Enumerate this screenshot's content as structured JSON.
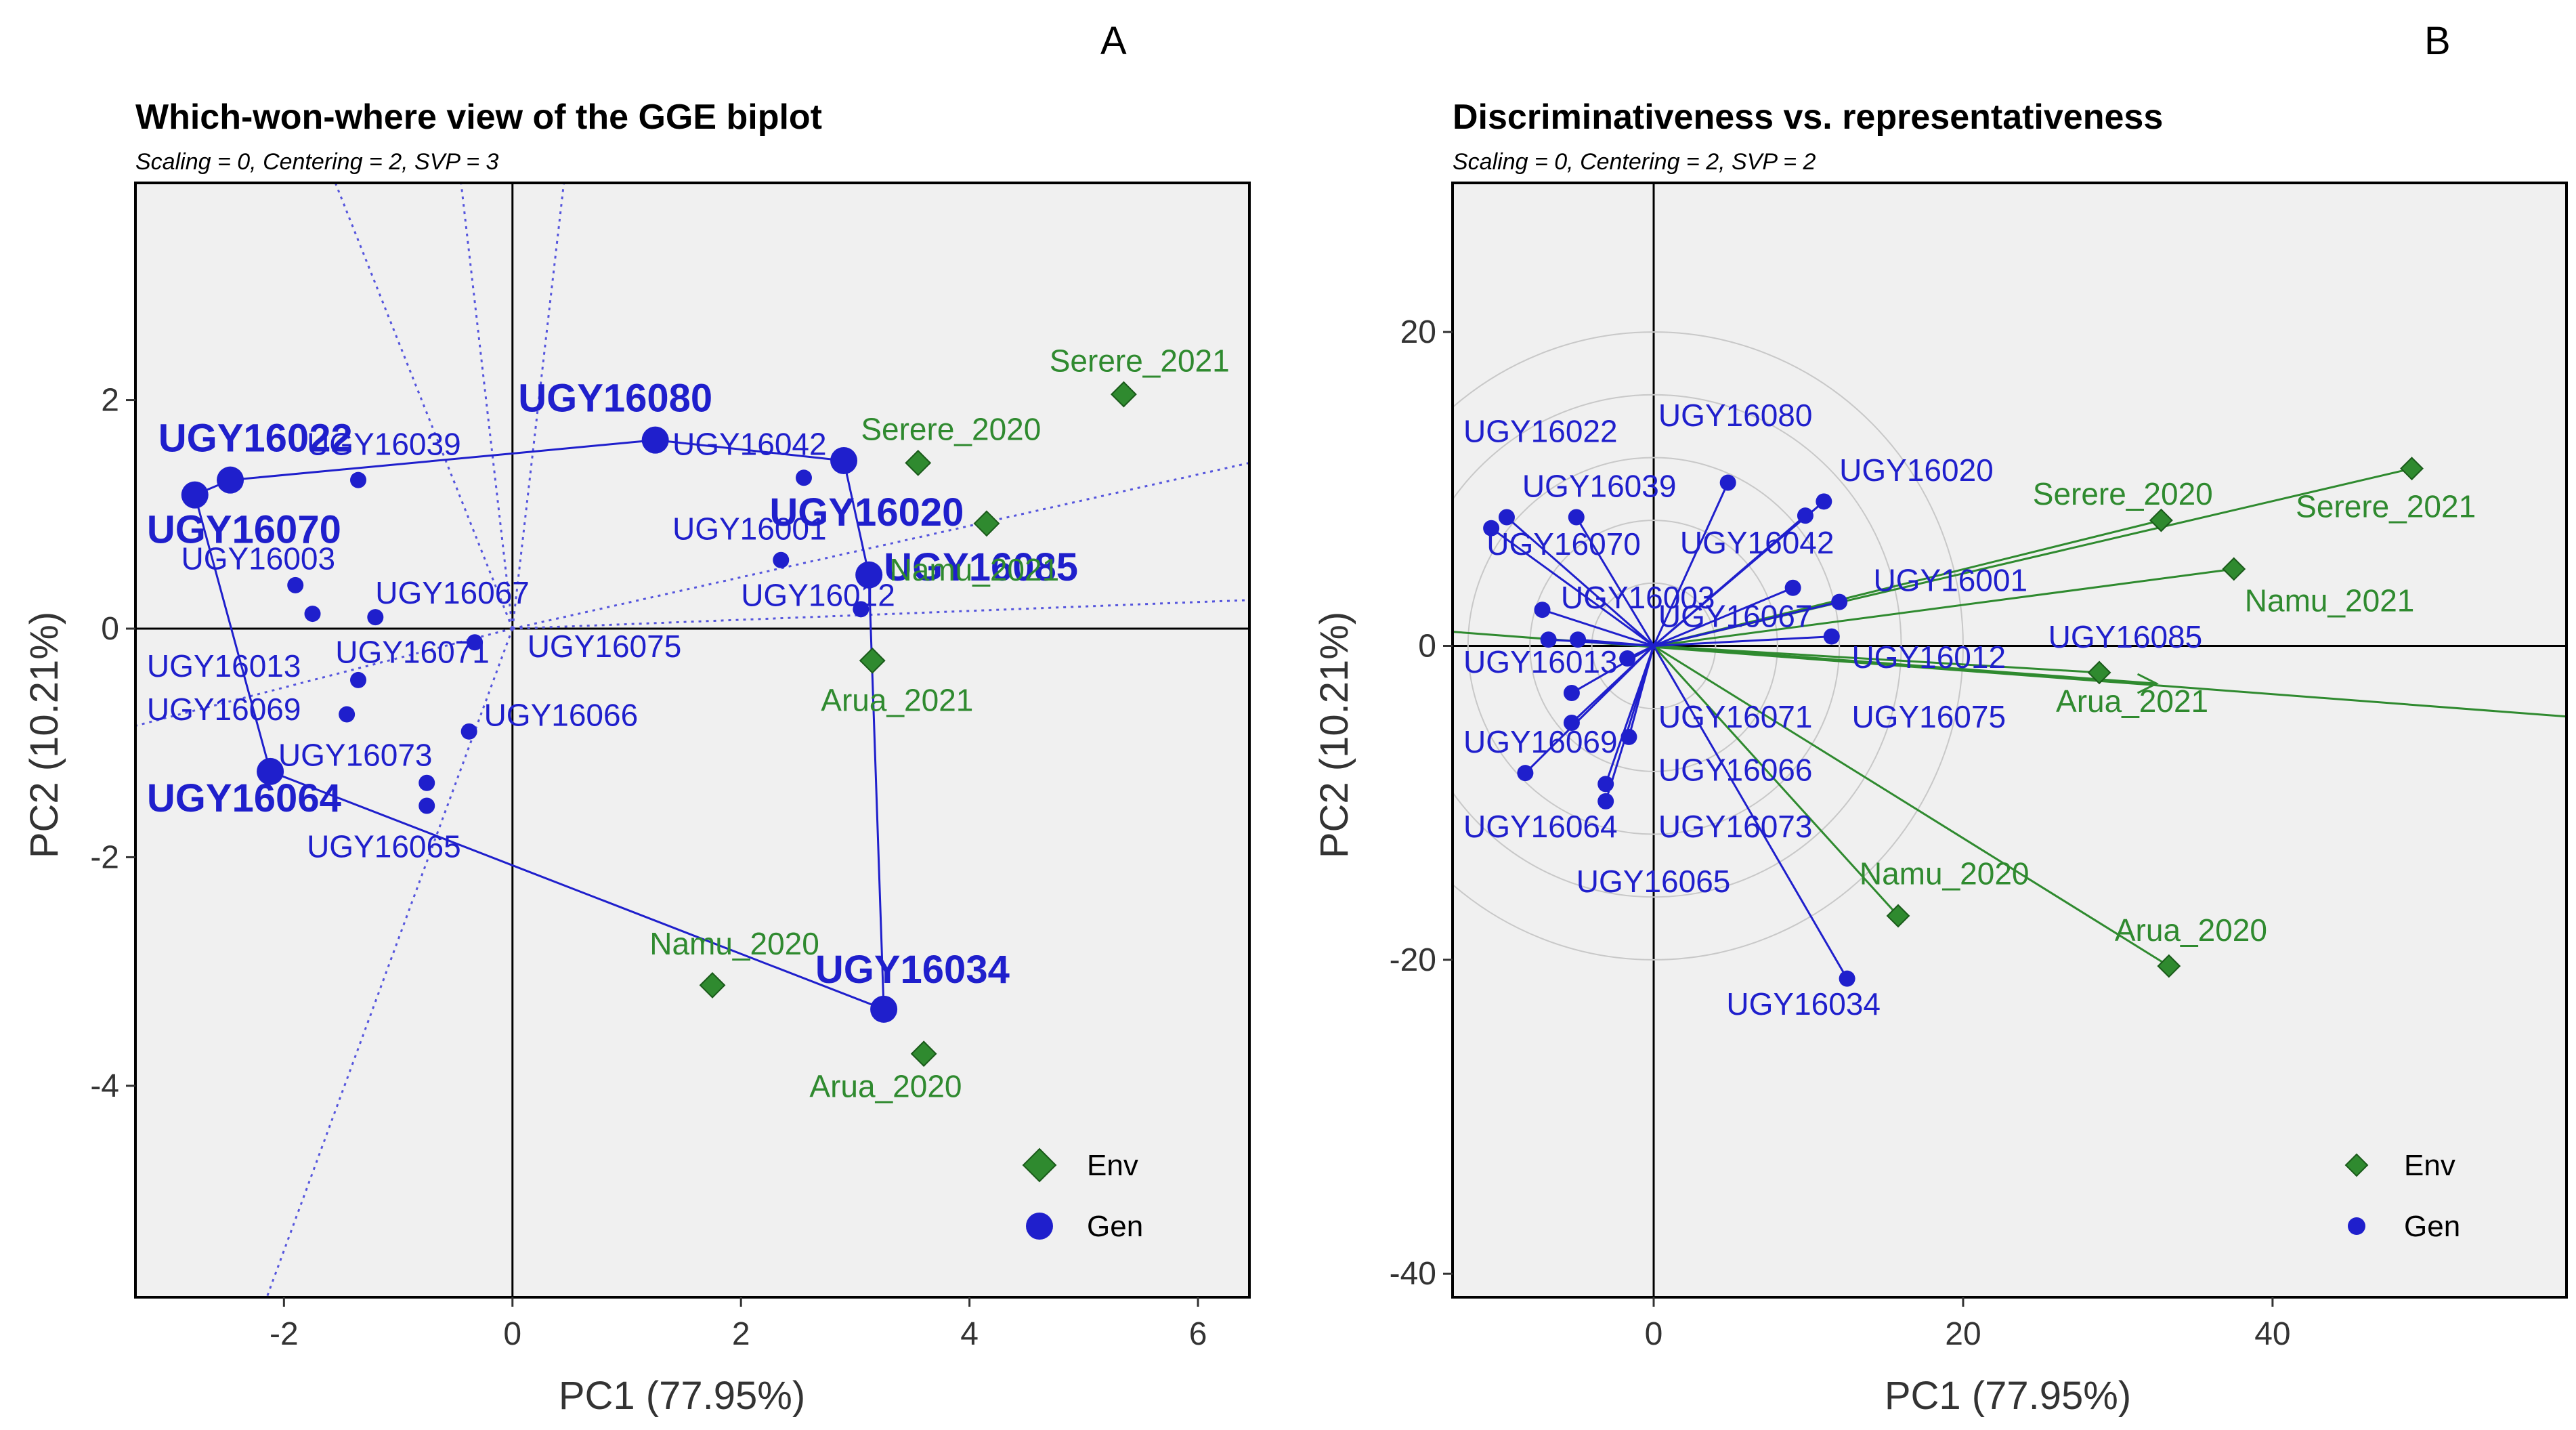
{
  "chart_data": [
    {
      "type": "scatter",
      "panel": "A",
      "title": "Which-won-where view of the GGE biplot",
      "subtitle": "Scaling = 0, Centering = 2, SVP = 3",
      "xlabel": "PC1 (77.95%)",
      "ylabel": "PC2 (10.21%)",
      "xlim": [
        -3.3,
        6.45
      ],
      "ylim": [
        -5.85,
        3.9
      ],
      "xticks": [
        -2,
        0,
        2,
        4,
        6
      ],
      "yticks": [
        -4,
        -2,
        0,
        2
      ],
      "colors": {
        "gen": "#1f1fcc",
        "env": "#2f8a2f",
        "axis": "#000000",
        "panel_bg": "#f0f0f0"
      },
      "genotypes": [
        {
          "name": "UGY16022",
          "x": -2.47,
          "y": 1.3,
          "vertex": true,
          "lx": -3.1,
          "ly": 1.55
        },
        {
          "name": "UGY16070",
          "x": -2.78,
          "y": 1.17,
          "vertex": true,
          "lx": -3.2,
          "ly": 0.75
        },
        {
          "name": "UGY16080",
          "x": 1.25,
          "y": 1.65,
          "vertex": true,
          "lx": 0.05,
          "ly": 1.9
        },
        {
          "name": "UGY16020",
          "x": 2.9,
          "y": 1.47,
          "vertex": true,
          "lx": 2.25,
          "ly": 0.9
        },
        {
          "name": "UGY16085",
          "x": 3.12,
          "y": 0.47,
          "vertex": true,
          "lx": 3.25,
          "ly": 0.42
        },
        {
          "name": "UGY16034",
          "x": 3.25,
          "y": -3.33,
          "vertex": true,
          "lx": 2.65,
          "ly": -3.1
        },
        {
          "name": "UGY16064",
          "x": -2.12,
          "y": -1.25,
          "vertex": true,
          "lx": -3.2,
          "ly": -1.6
        },
        {
          "name": "UGY16039",
          "x": -1.35,
          "y": 1.3,
          "vertex": false,
          "lx": -1.8,
          "ly": 1.52
        },
        {
          "name": "UGY16042",
          "x": 2.55,
          "y": 1.32,
          "vertex": false,
          "lx": 1.4,
          "ly": 1.52
        },
        {
          "name": "UGY16001",
          "x": 2.35,
          "y": 0.6,
          "vertex": false,
          "lx": 1.4,
          "ly": 0.78
        },
        {
          "name": "UGY16012",
          "x": 3.05,
          "y": 0.17,
          "vertex": false,
          "lx": 2.0,
          "ly": 0.2
        },
        {
          "name": "UGY16003",
          "x": -1.9,
          "y": 0.38,
          "vertex": false,
          "lx": -2.9,
          "ly": 0.52
        },
        {
          "name": "UGY16067",
          "x": -1.2,
          "y": 0.1,
          "vertex": false,
          "lx": -1.2,
          "ly": 0.22
        },
        {
          "name": "UGY16013",
          "x": -1.75,
          "y": 0.13,
          "vertex": false,
          "lx": -3.2,
          "ly": -0.42
        },
        {
          "name": "UGY16071",
          "x": -1.35,
          "y": -0.45,
          "vertex": false,
          "lx": -1.55,
          "ly": -0.3
        },
        {
          "name": "UGY16075",
          "x": -0.33,
          "y": -0.12,
          "vertex": false,
          "lx": 0.13,
          "ly": -0.25
        },
        {
          "name": "UGY16069",
          "x": -1.45,
          "y": -0.75,
          "vertex": false,
          "lx": -3.2,
          "ly": -0.8
        },
        {
          "name": "UGY16066",
          "x": -0.38,
          "y": -0.9,
          "vertex": false,
          "lx": -0.25,
          "ly": -0.85
        },
        {
          "name": "UGY16073",
          "x": -0.75,
          "y": -1.35,
          "vertex": false,
          "lx": -2.05,
          "ly": -1.2
        },
        {
          "name": "UGY16065",
          "x": -0.75,
          "y": -1.55,
          "vertex": false,
          "lx": -1.8,
          "ly": -2.0
        }
      ],
      "environments": [
        {
          "name": "Serere_2021",
          "x": 5.35,
          "y": 2.05,
          "lx": 4.7,
          "ly": 2.25
        },
        {
          "name": "Serere_2020",
          "x": 3.55,
          "y": 1.45,
          "lx": 3.05,
          "ly": 1.65
        },
        {
          "name": "Namu_2021",
          "x": 4.15,
          "y": 0.92,
          "lx": 3.3,
          "ly": 0.42
        },
        {
          "name": "Arua_2021",
          "x": 3.15,
          "y": -0.28,
          "lx": 2.7,
          "ly": -0.72
        },
        {
          "name": "Namu_2020",
          "x": 1.75,
          "y": -3.12,
          "lx": 1.2,
          "ly": -2.85
        },
        {
          "name": "Arua_2020",
          "x": 3.6,
          "y": -3.72,
          "lx": 2.6,
          "ly": -4.1
        }
      ],
      "polygon_order": [
        "UGY16080",
        "UGY16020",
        "UGY16085",
        "UGY16034",
        "UGY16064",
        "UGY16070",
        "UGY16022",
        "UGY16080"
      ],
      "sector_rays": [
        [
          -2.15,
          -5.85
        ],
        [
          -3.3,
          -0.85
        ],
        [
          -1.55,
          3.9
        ],
        [
          -0.45,
          3.9
        ],
        [
          0.45,
          3.9
        ],
        [
          6.45,
          1.45
        ],
        [
          6.45,
          0.25
        ]
      ],
      "legend": [
        {
          "label": "Env",
          "kind": "env"
        },
        {
          "label": "Gen",
          "kind": "gen"
        }
      ]
    },
    {
      "type": "scatter",
      "panel": "B",
      "title": "Discriminativeness vs. representativeness",
      "subtitle": "Scaling = 0, Centering = 2, SVP = 2",
      "xlabel": "PC1 (77.95%)",
      "ylabel": "PC2 (10.21%)",
      "xlim": [
        -13.0,
        59.0
      ],
      "ylim": [
        -41.5,
        29.5
      ],
      "xticks": [
        0,
        20,
        40
      ],
      "yticks": [
        -40,
        -20,
        0,
        20
      ],
      "colors": {
        "gen": "#1f1fcc",
        "env": "#2f8a2f",
        "axis": "#000000",
        "panel_bg": "#f0f0f0"
      },
      "circle_radii": [
        4,
        8,
        12,
        16,
        20
      ],
      "genotypes": [
        {
          "name": "UGY16022",
          "x": -9.5,
          "y": 8.2,
          "lx": -12.3,
          "ly": 13.0
        },
        {
          "name": "UGY16080",
          "x": 4.8,
          "y": 10.4,
          "lx": 0.3,
          "ly": 14.0
        },
        {
          "name": "UGY16039",
          "x": -5.0,
          "y": 8.2,
          "lx": -8.5,
          "ly": 9.5
        },
        {
          "name": "UGY16070",
          "x": -10.5,
          "y": 7.5,
          "lx": -10.8,
          "ly": 5.8
        },
        {
          "name": "UGY16020",
          "x": 11.0,
          "y": 9.2,
          "lx": 12.0,
          "ly": 10.5
        },
        {
          "name": "UGY16042",
          "x": 9.8,
          "y": 8.3,
          "lx": 1.7,
          "ly": 5.9
        },
        {
          "name": "UGY16001",
          "x": 9.0,
          "y": 3.7,
          "lx": 14.2,
          "ly": 3.5
        },
        {
          "name": "UGY16003",
          "x": -7.2,
          "y": 2.3,
          "lx": -6.0,
          "ly": 2.4
        },
        {
          "name": "UGY16067",
          "x": -4.9,
          "y": 0.4,
          "lx": 0.3,
          "ly": 1.2
        },
        {
          "name": "UGY16085",
          "x": 11.5,
          "y": 0.6,
          "lx": 25.5,
          "ly": -0.1
        },
        {
          "name": "UGY16012",
          "x": 12.0,
          "y": 2.8,
          "lx": 12.8,
          "ly": -1.4
        },
        {
          "name": "UGY16013",
          "x": -6.8,
          "y": 0.4,
          "lx": -12.3,
          "ly": -1.7
        },
        {
          "name": "UGY16071",
          "x": -5.3,
          "y": -3.0,
          "lx": 0.3,
          "ly": -5.2
        },
        {
          "name": "UGY16075",
          "x": -1.7,
          "y": -0.8,
          "lx": 12.8,
          "ly": -5.2
        },
        {
          "name": "UGY16069",
          "x": -5.3,
          "y": -4.9,
          "lx": -12.3,
          "ly": -6.8
        },
        {
          "name": "UGY16066",
          "x": -1.6,
          "y": -5.8,
          "lx": 0.3,
          "ly": -8.6
        },
        {
          "name": "UGY16064",
          "x": -8.3,
          "y": -8.1,
          "lx": -12.3,
          "ly": -12.2
        },
        {
          "name": "UGY16073",
          "x": -3.1,
          "y": -8.8,
          "lx": 0.3,
          "ly": -12.2
        },
        {
          "name": "UGY16065",
          "x": -3.1,
          "y": -9.9,
          "lx": -5.0,
          "ly": -15.7
        },
        {
          "name": "UGY16034",
          "x": 12.5,
          "y": -21.2,
          "lx": 4.7,
          "ly": -23.5
        }
      ],
      "environments": [
        {
          "name": "Serere_2021",
          "x": 49.0,
          "y": 11.3,
          "lx": 41.5,
          "ly": 8.2
        },
        {
          "name": "Serere_2020",
          "x": 32.8,
          "y": 8.0,
          "lx": 24.5,
          "ly": 9.0
        },
        {
          "name": "Namu_2021",
          "x": 37.5,
          "y": 4.9,
          "lx": 38.2,
          "ly": 2.2
        },
        {
          "name": "Arua_2021",
          "x": 28.8,
          "y": -1.7,
          "lx": 26.0,
          "ly": -4.2
        },
        {
          "name": "Namu_2020",
          "x": 15.8,
          "y": -17.2,
          "lx": 13.3,
          "ly": -15.2
        },
        {
          "name": "Arua_2020",
          "x": 33.3,
          "y": -20.4,
          "lx": 29.8,
          "ly": -18.8
        }
      ],
      "aec_line": [
        [
          -13.0,
          0.9
        ],
        [
          59.0,
          -4.5
        ]
      ],
      "aec_arrow": [
        [
          0,
          0
        ],
        [
          32.5,
          -2.4
        ]
      ],
      "legend": [
        {
          "label": "Env",
          "kind": "env"
        },
        {
          "label": "Gen",
          "kind": "gen"
        }
      ]
    }
  ]
}
